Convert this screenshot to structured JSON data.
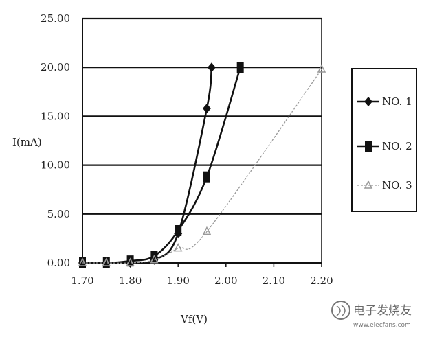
{
  "chart_data": {
    "type": "line",
    "xlabel": "Vf(V)",
    "ylabel": "I(mA)",
    "xlim": [
      1.7,
      2.2
    ],
    "ylim": [
      0,
      25
    ],
    "x_ticks": [
      "1.70",
      "1.80",
      "1.90",
      "2.00",
      "2.10",
      "2.20"
    ],
    "y_ticks": [
      "0.00",
      "5.00",
      "10.00",
      "15.00",
      "20.00",
      "25.00"
    ],
    "grid": "horizontal",
    "legend_position": "right",
    "series": [
      {
        "name": "NO. 1",
        "marker": "diamond",
        "color": "#111111",
        "x": [
          1.7,
          1.75,
          1.8,
          1.85,
          1.9,
          1.96,
          1.97
        ],
        "y": [
          0.0,
          0.0,
          0.0,
          0.3,
          3.0,
          15.8,
          20.0
        ]
      },
      {
        "name": "NO. 2",
        "marker": "square",
        "color": "#111111",
        "x": [
          1.7,
          1.75,
          1.8,
          1.85,
          1.9,
          1.96,
          2.03
        ],
        "y": [
          0.0,
          0.0,
          0.2,
          0.7,
          3.3,
          8.8,
          20.0
        ]
      },
      {
        "name": "NO. 3",
        "marker": "triangle",
        "color": "#999999",
        "x": [
          1.7,
          1.75,
          1.8,
          1.85,
          1.9,
          1.96,
          2.2
        ],
        "y": [
          0.0,
          0.0,
          0.0,
          0.3,
          1.5,
          3.2,
          19.8
        ]
      }
    ]
  },
  "watermark": {
    "text": "电子发烧友",
    "url": "www.elecfans.com"
  }
}
